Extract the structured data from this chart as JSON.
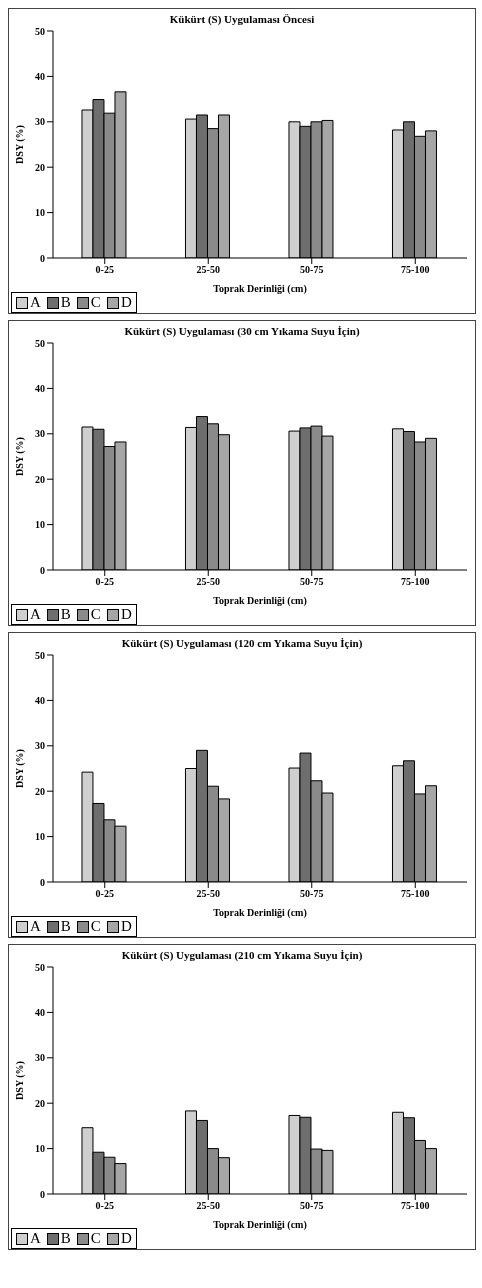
{
  "chart_data": [
    {
      "type": "bar",
      "title": "Kükürt (S) Uygulaması Öncesi",
      "xlabel": "Toprak Derinliği (cm)",
      "ylabel": "DSY (%)",
      "categories": [
        "0-25",
        "25-50",
        "50-75",
        "75-100"
      ],
      "ylim": [
        0,
        50
      ],
      "yticks": [
        0,
        10,
        20,
        30,
        40,
        50
      ],
      "legend": "bottom left",
      "grid": false,
      "series": [
        {
          "name": "A",
          "color": "#cfcfcf",
          "values": [
            32.6,
            30.6,
            30,
            28.2
          ]
        },
        {
          "name": "B",
          "color": "#6e6e6e",
          "values": [
            34.9,
            31.5,
            29,
            30
          ]
        },
        {
          "name": "C",
          "color": "#8a8a8a",
          "values": [
            31.9,
            28.5,
            30,
            26.8
          ]
        },
        {
          "name": "D",
          "color": "#a6a6a6",
          "values": [
            36.6,
            31.5,
            30.3,
            28
          ]
        }
      ]
    },
    {
      "type": "bar",
      "title": "Kükürt (S) Uygulaması (30 cm Yıkama Suyu İçin)",
      "xlabel": "Toprak Derinliği (cm)",
      "ylabel": "DSY (%)",
      "categories": [
        "0-25",
        "25-50",
        "50-75",
        "75-100"
      ],
      "ylim": [
        0,
        50
      ],
      "yticks": [
        0,
        10,
        20,
        30,
        40,
        50
      ],
      "legend": "bottom left",
      "grid": false,
      "series": [
        {
          "name": "A",
          "color": "#cfcfcf",
          "values": [
            31.5,
            31.4,
            30.6,
            31.1
          ]
        },
        {
          "name": "B",
          "color": "#6e6e6e",
          "values": [
            31,
            33.8,
            31.3,
            30.5
          ]
        },
        {
          "name": "C",
          "color": "#8a8a8a",
          "values": [
            27.2,
            32.2,
            31.7,
            28.2
          ]
        },
        {
          "name": "D",
          "color": "#a6a6a6",
          "values": [
            28.2,
            29.8,
            29.5,
            29
          ]
        }
      ]
    },
    {
      "type": "bar",
      "title": "Kükürt (S) Uygulaması (120 cm Yıkama Suyu İçin)",
      "xlabel": "Toprak Derinliği (cm)",
      "ylabel": "DSY (%)",
      "categories": [
        "0-25",
        "25-50",
        "50-75",
        "75-100"
      ],
      "ylim": [
        0,
        50
      ],
      "yticks": [
        0,
        10,
        20,
        30,
        40,
        50
      ],
      "legend": "bottom left",
      "grid": false,
      "series": [
        {
          "name": "A",
          "color": "#cfcfcf",
          "values": [
            24.2,
            25,
            25.1,
            25.6
          ]
        },
        {
          "name": "B",
          "color": "#6e6e6e",
          "values": [
            17.3,
            29,
            28.4,
            26.7
          ]
        },
        {
          "name": "C",
          "color": "#8a8a8a",
          "values": [
            13.7,
            21.1,
            22.3,
            19.4
          ]
        },
        {
          "name": "D",
          "color": "#a6a6a6",
          "values": [
            12.3,
            18.3,
            19.6,
            21.2
          ]
        }
      ]
    },
    {
      "type": "bar",
      "title": "Kükürt (S) Uygulaması (210 cm Yıkama Suyu İçin)",
      "xlabel": "Toprak Derinliği (cm)",
      "ylabel": "DSY (%)",
      "categories": [
        "0-25",
        "25-50",
        "50-75",
        "75-100"
      ],
      "ylim": [
        0,
        50
      ],
      "yticks": [
        0,
        10,
        20,
        30,
        40,
        50
      ],
      "legend": "bottom left",
      "grid": false,
      "series": [
        {
          "name": "A",
          "color": "#cfcfcf",
          "values": [
            14.6,
            18.3,
            17.3,
            18
          ]
        },
        {
          "name": "B",
          "color": "#6e6e6e",
          "values": [
            9.2,
            16.2,
            16.9,
            16.8
          ]
        },
        {
          "name": "C",
          "color": "#8a8a8a",
          "values": [
            8.1,
            10,
            9.9,
            11.8
          ]
        },
        {
          "name": "D",
          "color": "#a6a6a6",
          "values": [
            6.7,
            8,
            9.6,
            10
          ]
        }
      ]
    }
  ]
}
